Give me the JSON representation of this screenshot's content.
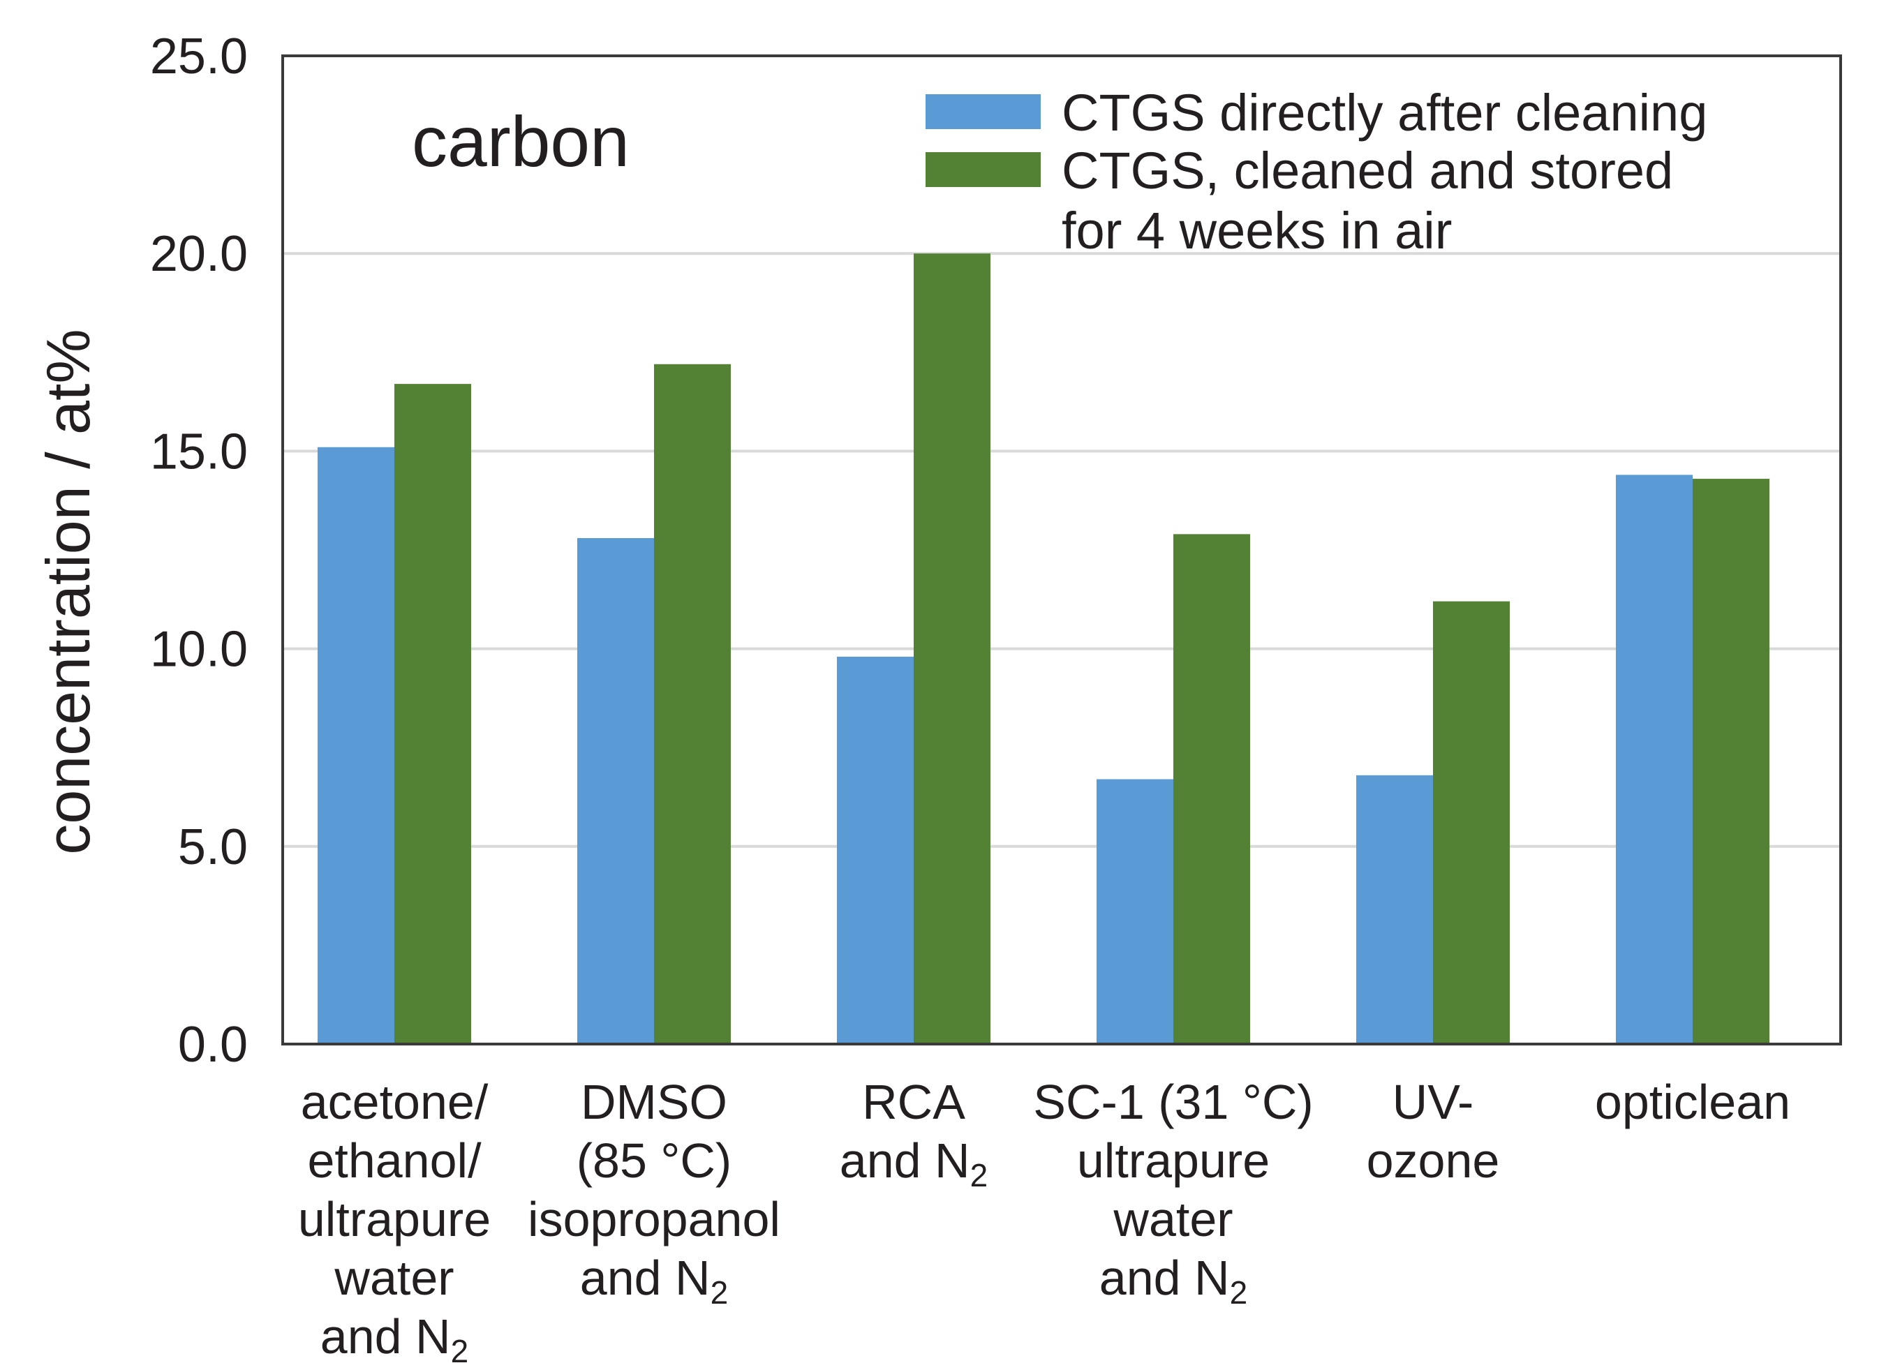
{
  "chart_data": {
    "type": "bar",
    "annotation": "carbon",
    "ylabel": "concentration / at%",
    "xlabel": "",
    "ylim": [
      0,
      25
    ],
    "yticks": [
      "0.0",
      "5.0",
      "10.0",
      "15.0",
      "20.0",
      "25.0"
    ],
    "ytick_values": [
      0,
      5,
      10,
      15,
      20,
      25
    ],
    "grid": true,
    "legend_position": "top-right",
    "categories": [
      [
        "acetone/",
        "ethanol/",
        "ultrapure",
        "water",
        "and N₂"
      ],
      [
        "DMSO",
        "(85 °C)",
        "isopropanol",
        "and N₂"
      ],
      [
        "RCA",
        "and N₂"
      ],
      [
        "SC-1 (31 °C)",
        "ultrapure",
        "water",
        "and N₂"
      ],
      [
        "UV-",
        "ozone"
      ],
      [
        "opticlean"
      ]
    ],
    "series": [
      {
        "name": "CTGS directly after cleaning",
        "legend_lines": [
          "CTGS directly after cleaning"
        ],
        "color": "#5b9bd5",
        "values": [
          15.1,
          12.8,
          9.8,
          6.7,
          6.8,
          14.4
        ]
      },
      {
        "name": "CTGS, cleaned and stored for 4 weeks in air",
        "legend_lines": [
          "CTGS, cleaned and stored",
          "for 4 weeks in air"
        ],
        "color": "#548235",
        "values": [
          16.7,
          17.2,
          20.0,
          12.9,
          11.2,
          14.3
        ]
      }
    ]
  }
}
